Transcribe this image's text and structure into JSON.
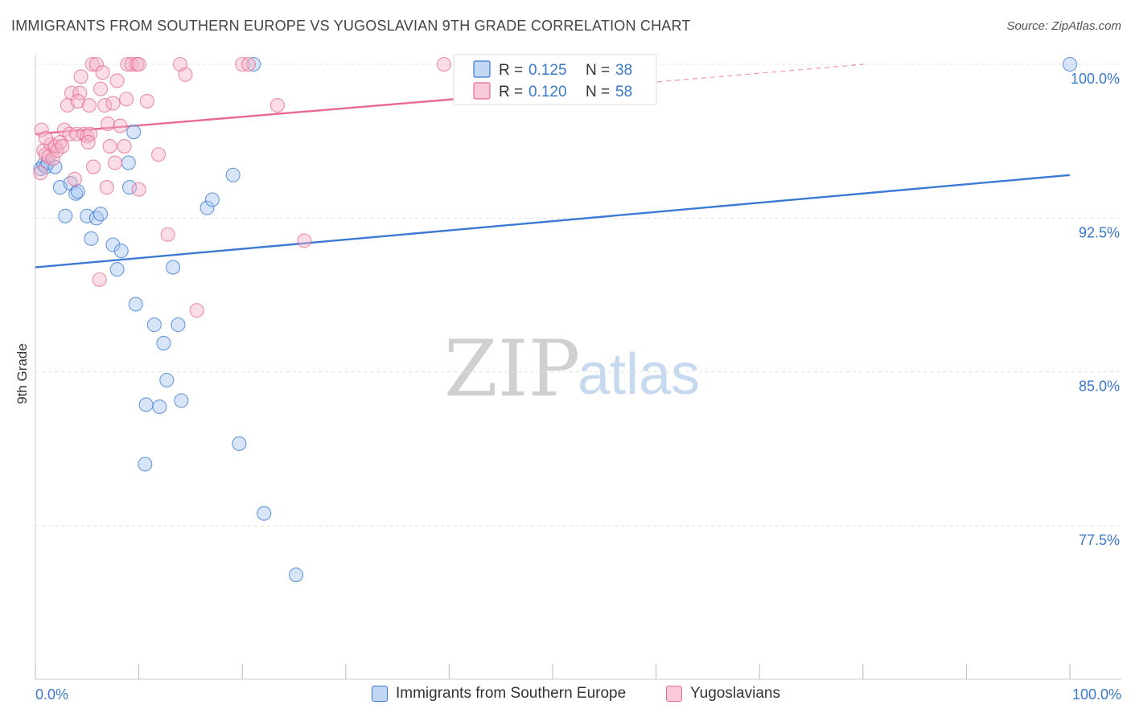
{
  "title": "IMMIGRANTS FROM SOUTHERN EUROPE VS YUGOSLAVIAN 9TH GRADE CORRELATION CHART",
  "source": "Source: ZipAtlas.com",
  "watermark": {
    "zip": "ZIP",
    "atlas": "atlas"
  },
  "colors": {
    "blue": "#3b7ad4",
    "blue_fill": "#a8c6ef",
    "pink": "#e86a93",
    "pink_fill": "#f5b3c8",
    "axis_text": "#3a78c9",
    "grid": "#e0e0e0"
  },
  "chart_data": {
    "type": "scatter",
    "title": "IMMIGRANTS FROM SOUTHERN EUROPE VS YUGOSLAVIAN 9TH GRADE CORRELATION CHART",
    "xlabel": "",
    "ylabel": "9th Grade",
    "xlim": [
      0,
      100
    ],
    "ylim": [
      70.3,
      100.8
    ],
    "y_ticks": [
      {
        "value": 100.0,
        "label": "100.0%"
      },
      {
        "value": 92.5,
        "label": "92.5%"
      },
      {
        "value": 85.0,
        "label": "85.0%"
      },
      {
        "value": 77.5,
        "label": "77.5%"
      }
    ],
    "x_tick_labels": {
      "left": "0.0%",
      "right": "100.0%"
    },
    "grid": true,
    "legend_position": "top-center",
    "series": [
      {
        "name": "Immigrants from Southern Europe",
        "color": "#3b7ad4",
        "R": "0.125",
        "N": "38",
        "trend": {
          "x0": 0,
          "y0": 90.1,
          "x1": 100,
          "y1": 94.6
        },
        "points": [
          [
            0.5,
            94.9
          ],
          [
            0.8,
            95.1
          ],
          [
            1.0,
            95.0
          ],
          [
            1.2,
            95.2
          ],
          [
            1.9,
            95.0
          ],
          [
            2.4,
            94.0
          ],
          [
            3.4,
            94.2
          ],
          [
            3.9,
            93.7
          ],
          [
            4.1,
            93.8
          ],
          [
            2.9,
            92.6
          ],
          [
            5.0,
            92.6
          ],
          [
            5.9,
            92.5
          ],
          [
            6.3,
            92.7
          ],
          [
            5.4,
            91.5
          ],
          [
            7.5,
            91.2
          ],
          [
            8.3,
            90.9
          ],
          [
            7.9,
            90.0
          ],
          [
            9.1,
            94.0
          ],
          [
            9.5,
            96.7
          ],
          [
            9.0,
            95.2
          ],
          [
            16.6,
            93.0
          ],
          [
            17.1,
            93.4
          ],
          [
            19.1,
            94.6
          ],
          [
            13.3,
            90.1
          ],
          [
            9.7,
            88.3
          ],
          [
            11.5,
            87.3
          ],
          [
            13.8,
            87.3
          ],
          [
            12.4,
            86.4
          ],
          [
            12.7,
            84.6
          ],
          [
            10.7,
            83.4
          ],
          [
            12.0,
            83.3
          ],
          [
            14.1,
            83.6
          ],
          [
            19.7,
            81.5
          ],
          [
            10.6,
            80.5
          ],
          [
            22.1,
            78.1
          ],
          [
            25.2,
            75.1
          ],
          [
            21.1,
            100.0
          ],
          [
            100.0,
            100.0
          ]
        ]
      },
      {
        "name": "Yugoslavians",
        "color": "#e86a93",
        "R": "0.120",
        "N": "58",
        "trend": {
          "x0": 0,
          "y0": 96.6,
          "x1": 40.5,
          "y1": 98.3
        },
        "trend_dashed": {
          "x0": 40.5,
          "y0": 98.3,
          "x1": 80.1,
          "y1": 100.0
        },
        "points": [
          [
            0.5,
            94.7
          ],
          [
            0.6,
            96.8
          ],
          [
            0.8,
            95.8
          ],
          [
            1.0,
            95.6
          ],
          [
            1.3,
            95.5
          ],
          [
            1.5,
            96.1
          ],
          [
            1.7,
            95.4
          ],
          [
            1.9,
            96.0
          ],
          [
            2.1,
            95.8
          ],
          [
            2.4,
            96.2
          ],
          [
            2.6,
            96.0
          ],
          [
            2.8,
            96.8
          ],
          [
            3.1,
            98.0
          ],
          [
            3.3,
            96.6
          ],
          [
            3.5,
            98.6
          ],
          [
            4.0,
            96.6
          ],
          [
            4.3,
            98.6
          ],
          [
            4.1,
            98.2
          ],
          [
            4.4,
            99.4
          ],
          [
            4.7,
            96.6
          ],
          [
            5.0,
            96.5
          ],
          [
            5.3,
            96.6
          ],
          [
            5.1,
            96.2
          ],
          [
            5.6,
            95.0
          ],
          [
            5.2,
            98.0
          ],
          [
            5.5,
            100.0
          ],
          [
            5.9,
            100.0
          ],
          [
            6.3,
            98.8
          ],
          [
            6.5,
            99.6
          ],
          [
            6.7,
            98.0
          ],
          [
            6.9,
            94.0
          ],
          [
            7.0,
            97.1
          ],
          [
            7.2,
            96.0
          ],
          [
            7.5,
            98.1
          ],
          [
            7.7,
            95.2
          ],
          [
            7.9,
            99.2
          ],
          [
            8.2,
            97.0
          ],
          [
            8.6,
            96.0
          ],
          [
            8.8,
            98.3
          ],
          [
            8.9,
            100.0
          ],
          [
            9.3,
            100.0
          ],
          [
            9.8,
            100.0
          ],
          [
            10.0,
            100.0
          ],
          [
            10.0,
            93.9
          ],
          [
            10.8,
            98.2
          ],
          [
            11.9,
            95.6
          ],
          [
            12.8,
            91.7
          ],
          [
            14.0,
            100.0
          ],
          [
            14.5,
            99.5
          ],
          [
            15.6,
            88.0
          ],
          [
            20.0,
            100.0
          ],
          [
            20.6,
            100.0
          ],
          [
            23.4,
            98.0
          ],
          [
            26.0,
            91.4
          ],
          [
            39.5,
            100.0
          ],
          [
            3.8,
            94.4
          ],
          [
            6.2,
            89.5
          ],
          [
            1.0,
            96.4
          ]
        ]
      }
    ]
  },
  "legend_stats": {
    "r_label": "R =",
    "n_label": "N ="
  }
}
